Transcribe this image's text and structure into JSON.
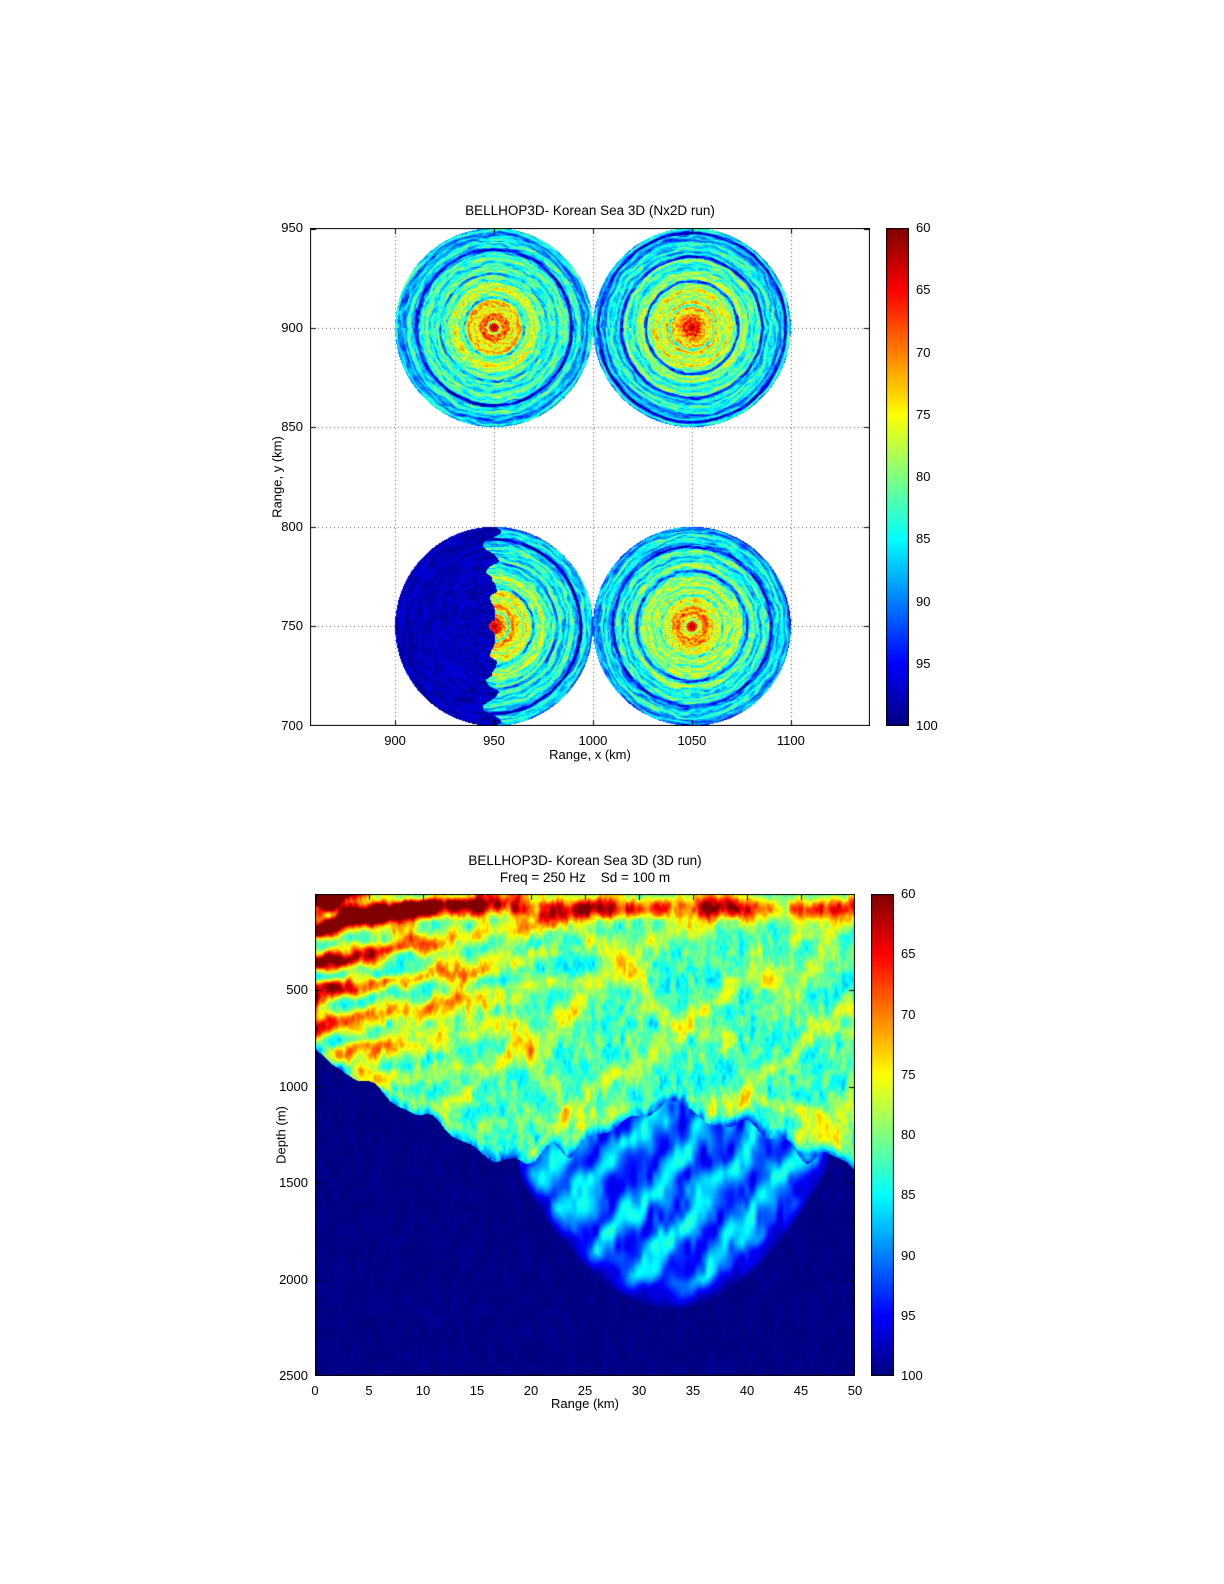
{
  "page": {
    "background": "#ffffff"
  },
  "colors": {
    "axis": "#000000",
    "colormap": "jet reversed (60 dB = dark red at top of bar, 100 dB = dark blue at bottom)"
  },
  "chart_data": [
    {
      "type": "heatmap",
      "title": "BELLHOP3D- Korean Sea 3D (Nx2D run)",
      "xlabel": "Range, x (km)",
      "ylabel": "Range, y (km)",
      "xlim": [
        857,
        1140
      ],
      "ylim": [
        700,
        950
      ],
      "x_ticks": [
        900,
        950,
        1000,
        1050,
        1100
      ],
      "y_ticks": [
        700,
        750,
        800,
        850,
        900,
        950
      ],
      "grid": true,
      "background": "#ffffff",
      "value_field": "transmission loss (dB)",
      "value_range": [
        60,
        100
      ],
      "colorbar": {
        "position": "right",
        "ticks": [
          60,
          65,
          70,
          75,
          80,
          85,
          90,
          95,
          100
        ],
        "top_value": 60,
        "bottom_value": 100
      },
      "sources": [
        {
          "center_x_km": 950,
          "center_y_km": 900,
          "radius_km": 50,
          "shadow_sector": false
        },
        {
          "center_x_km": 1050,
          "center_y_km": 900,
          "radius_km": 50,
          "shadow_sector": false
        },
        {
          "center_x_km": 950,
          "center_y_km": 750,
          "radius_km": 50,
          "shadow_sector": true,
          "shadow_side": "west half blocked, TL ~100 dB (dark blue)"
        },
        {
          "center_x_km": 1050,
          "center_y_km": 750,
          "radius_km": 50,
          "shadow_sector": false
        }
      ],
      "pattern": "four circular TL fields of concentric interference rings: ~60 dB (dark red) at each source center grading through orange/yellow/green to ~85-90 dB (cyan with blue rings) at the 50 km edge"
    },
    {
      "type": "heatmap",
      "title": "BELLHOP3D- Korean Sea 3D (3D run)",
      "subtitle": "Freq = 250 Hz    Sd = 100 m",
      "xlabel": "Range (km)",
      "ylabel": "Depth (m)",
      "xlim": [
        0,
        50
      ],
      "ylim_top": 0,
      "ylim_bottom": 2500,
      "x_ticks": [
        0,
        5,
        10,
        15,
        20,
        25,
        30,
        35,
        40,
        45,
        50
      ],
      "y_ticks": [
        500,
        1000,
        1500,
        2000,
        2500
      ],
      "grid": false,
      "value_field": "transmission loss (dB)",
      "value_range": [
        60,
        100
      ],
      "colorbar": {
        "position": "right",
        "ticks": [
          60,
          65,
          70,
          75,
          80,
          85,
          90,
          95,
          100
        ],
        "top_value": 60,
        "bottom_value": 100
      },
      "features": {
        "source": {
          "depth_m": 100,
          "range_km": 0,
          "freq_hz": 250
        },
        "strong_field": "red/orange striated arrivals (60-72 dB) for range < ~15 km above ~800 m depth, plus an intermittent near-surface red streak (~60-75 dB) running out to 50 km",
        "mid_field": "mottled cyan/green/yellow field (75-88 dB) filling the upper water column across all ranges",
        "shadow": "dark blue shadow (~100 dB) below a boundary deepening from ~850 m at 0 km to ~1450 m at ~20 km",
        "convergence_lobe": "banded medium-blue refracted lens (88-97 dB) between ~20-47 km dipping to ~2150 m near 33 km"
      }
    }
  ]
}
